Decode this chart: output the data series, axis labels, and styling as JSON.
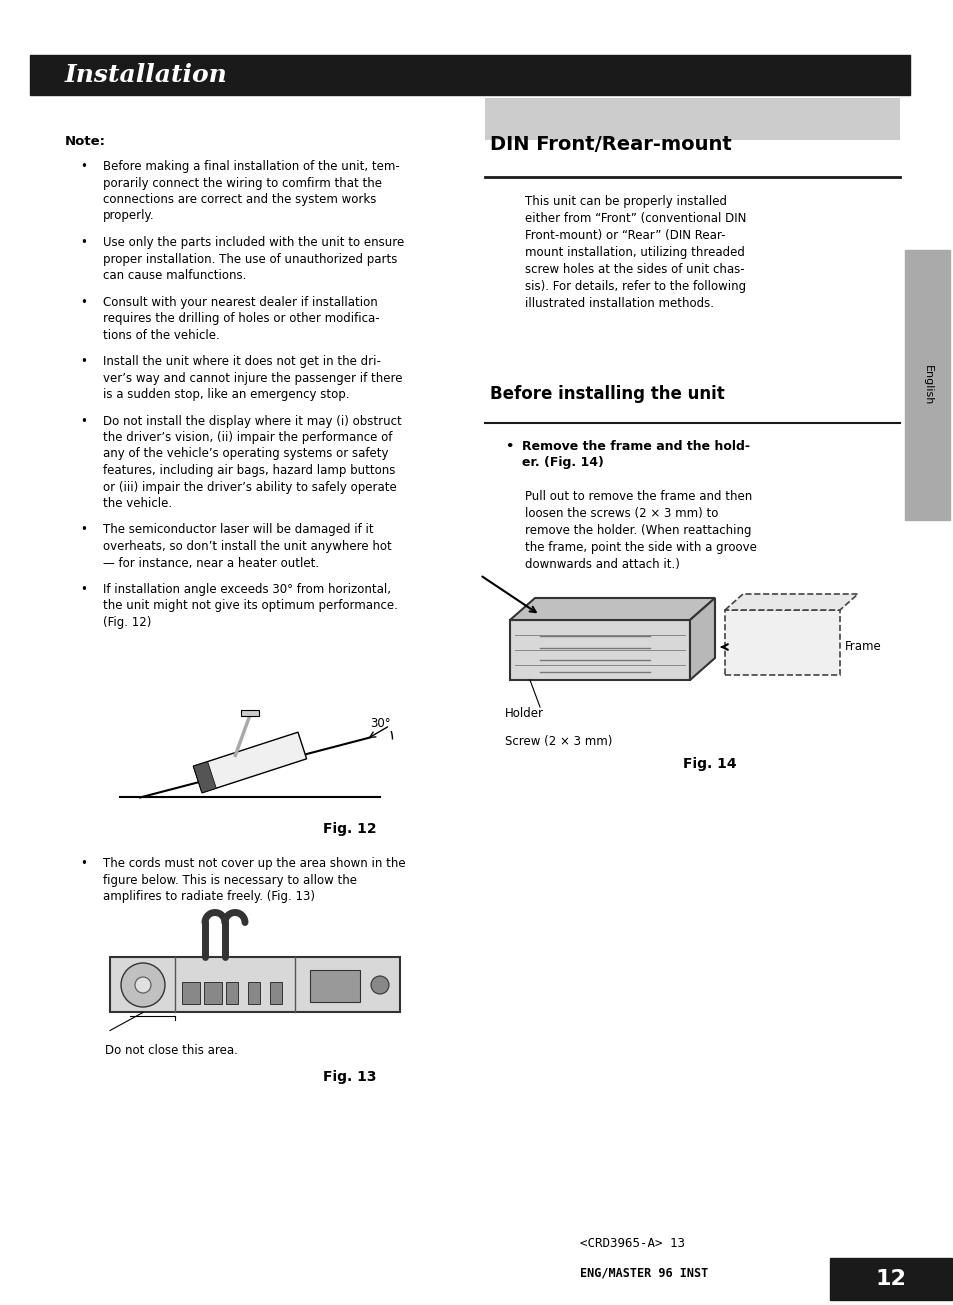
{
  "page_bg": "#ffffff",
  "header_bg": "#1a1a1a",
  "header_text": "Installation",
  "header_text_color": "#ffffff",
  "header_font_style": "italic",
  "header_font_size": 18,
  "sidebar_bg": "#aaaaaa",
  "sidebar_text": "English",
  "page_number_bg": "#1a1a1a",
  "page_number": "12",
  "page_number_color": "#ffffff",
  "footer_text1": "<CRD3965-A> 13",
  "footer_text2": "ENG/MASTER 96 INST",
  "note_title": "Note:",
  "note_bullets": [
    "Before making a final installation of the unit, tem-\nporarily connect the wiring to comfirm that the\nconnections are correct and the system works\nproperly.",
    "Use only the parts included with the unit to ensure\nproper installation. The use of unauthorized parts\ncan cause malfunctions.",
    "Consult with your nearest dealer if installation\nrequires the drilling of holes or other modifica-\ntions of the vehicle.",
    "Install the unit where it does not get in the dri-\nver’s way and cannot injure the passenger if there\nis a sudden stop, like an emergency stop.",
    "Do not install the display where it may (i) obstruct\nthe driver’s vision, (ii) impair the performance of\nany of the vehicle’s operating systems or safety\nfeatures, including air bags, hazard lamp buttons\nor (iii) impair the driver’s ability to safely operate\nthe vehicle.",
    "The semiconductor laser will be damaged if it\noverheats, so don’t install the unit anywhere hot\n— for instance, near a heater outlet.",
    "If installation angle exceeds 30° from horizontal,\nthe unit might not give its optimum performance.\n(Fig. 12)"
  ],
  "fig12_caption": "Fig. 12",
  "fig12_bullet": "The cords must not cover up the area shown in the\nfigure below. This is necessary to allow the\namplifires to radiate freely. (Fig. 13)",
  "fig13_caption": "Fig. 13",
  "fig13_sublabel": "Do not close this area.",
  "din_title": "DIN Front/Rear-mount",
  "din_body": "This unit can be properly installed\neither from “Front” (conventional DIN\nFront-mount) or “Rear” (DIN Rear-\nmount installation, utilizing threaded\nscrew holes at the sides of unit chas-\nsis). For details, refer to the following\nillustrated installation methods.",
  "before_title": "Before installing the unit",
  "before_bullet_title": "Remove the frame and the hold-\ner. (Fig. 14)",
  "before_body": "Pull out to remove the frame and then\nloosen the screws (2 × 3 mm) to\nremove the holder. (When reattaching\nthe frame, point the side with a groove\ndownwards and attach it.)",
  "holder_label": "Holder",
  "screw_label": "Screw (2 × 3 mm)",
  "frame_label": "Frame",
  "fig14_caption": "Fig. 14",
  "text_color": "#000000",
  "body_font_size": 8.5,
  "section_font_size": 14,
  "subsection_font_size": 12
}
